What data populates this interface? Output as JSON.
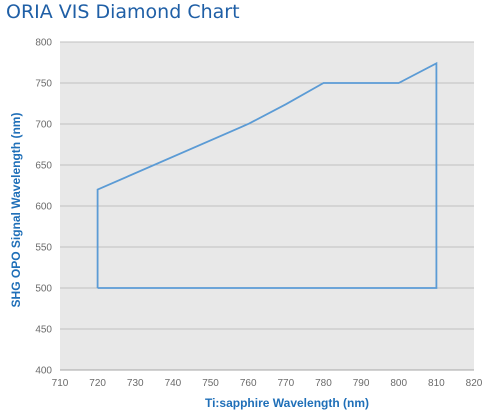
{
  "chart_data": {
    "type": "line",
    "title": "ORIA VIS Diamond Chart",
    "xlabel": "Ti:sapphire Wavelength (nm)",
    "ylabel": "SHG OPO Signal Wavelength (nm)",
    "xlim": [
      710,
      820
    ],
    "ylim": [
      400,
      800
    ],
    "x_ticks": [
      710,
      720,
      730,
      740,
      750,
      760,
      770,
      780,
      790,
      800,
      810,
      820
    ],
    "y_ticks": [
      400,
      450,
      500,
      550,
      600,
      650,
      700,
      750,
      800
    ],
    "grid": "horizontal",
    "legend": "none",
    "series": [
      {
        "values": [
          {
            "x": 720,
            "y": 500
          },
          {
            "x": 720,
            "y": 620
          },
          {
            "x": 760,
            "y": 700
          },
          {
            "x": 770,
            "y": 724
          },
          {
            "x": 780,
            "y": 750
          },
          {
            "x": 800,
            "y": 750
          },
          {
            "x": 810,
            "y": 774
          },
          {
            "x": 810,
            "y": 500
          },
          {
            "x": 720,
            "y": 500
          }
        ]
      }
    ],
    "colors": {
      "plot_background": "#e8e8e8",
      "line": "#5b9bd5",
      "grid": "#bfbfbf",
      "title": "#1f5fa6",
      "axis_title": "#1f6fb8"
    }
  }
}
